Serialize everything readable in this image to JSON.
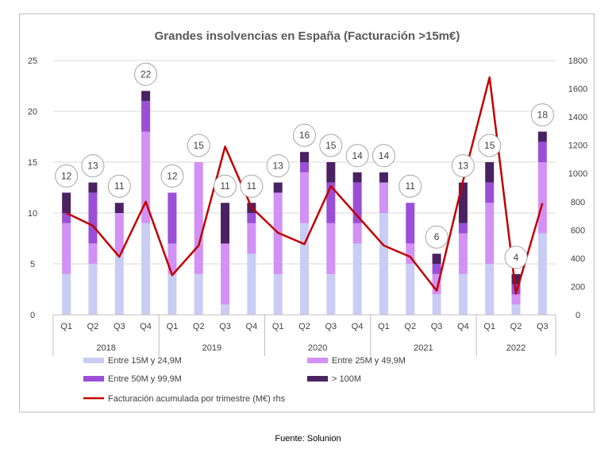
{
  "chart_data": {
    "type": "bar",
    "title": "Grandes insolvencias en España (Facturación >15m€)",
    "quarters": [
      "Q1",
      "Q2",
      "Q3",
      "Q4",
      "Q1",
      "Q2",
      "Q3",
      "Q4",
      "Q1",
      "Q2",
      "Q3",
      "Q4",
      "Q1",
      "Q2",
      "Q3",
      "Q4",
      "Q1",
      "Q2",
      "Q3"
    ],
    "years": [
      {
        "label": "2018",
        "count": 4
      },
      {
        "label": "2019",
        "count": 4
      },
      {
        "label": "2020",
        "count": 4
      },
      {
        "label": "2021",
        "count": 4
      },
      {
        "label": "2022",
        "count": 3
      }
    ],
    "y_left": {
      "min": 0,
      "max": 25,
      "ticks": [
        0,
        5,
        10,
        15,
        20,
        25
      ]
    },
    "y_right": {
      "min": 0,
      "max": 1800,
      "ticks": [
        0,
        200,
        400,
        600,
        800,
        1000,
        1200,
        1400,
        1600,
        1800
      ]
    },
    "series": [
      {
        "name": "Entre 15M y 24,9M",
        "color": "#c9cdf4",
        "values": [
          4,
          5,
          6,
          9,
          4,
          4,
          1,
          6,
          4,
          9,
          4,
          7,
          10,
          5,
          2,
          4,
          5,
          1,
          8
        ]
      },
      {
        "name": "Entre 25M y 49,9M",
        "color": "#d291f4",
        "values": [
          5,
          2,
          4,
          9,
          3,
          11,
          6,
          3,
          8,
          5,
          5,
          2,
          3,
          2,
          2,
          4,
          6,
          1,
          7
        ]
      },
      {
        "name": "Entre 50M y 99,9M",
        "color": "#9a4fd6",
        "values": [
          1,
          5,
          0,
          3,
          5,
          0,
          0,
          1,
          0,
          1,
          4,
          4,
          0,
          4,
          1,
          1,
          2,
          1,
          2
        ]
      },
      {
        "name": "> 100M",
        "color": "#4a2262",
        "values": [
          2,
          1,
          1,
          1,
          0,
          0,
          4,
          1,
          1,
          1,
          2,
          1,
          1,
          0,
          1,
          4,
          2,
          1,
          1
        ]
      }
    ],
    "totals": [
      12,
      13,
      11,
      22,
      12,
      15,
      11,
      11,
      13,
      16,
      15,
      14,
      14,
      11,
      6,
      13,
      15,
      4,
      18
    ],
    "line": {
      "name": "Facturación acumulada por trimestre (M€) rhs",
      "color": "#c00000",
      "axis": "right",
      "values": [
        720,
        630,
        410,
        800,
        280,
        490,
        1190,
        760,
        580,
        500,
        910,
        700,
        490,
        410,
        170,
        950,
        1680,
        150,
        790
      ]
    },
    "legend_placement": "bottom"
  },
  "source": "Fuente: Solunion"
}
